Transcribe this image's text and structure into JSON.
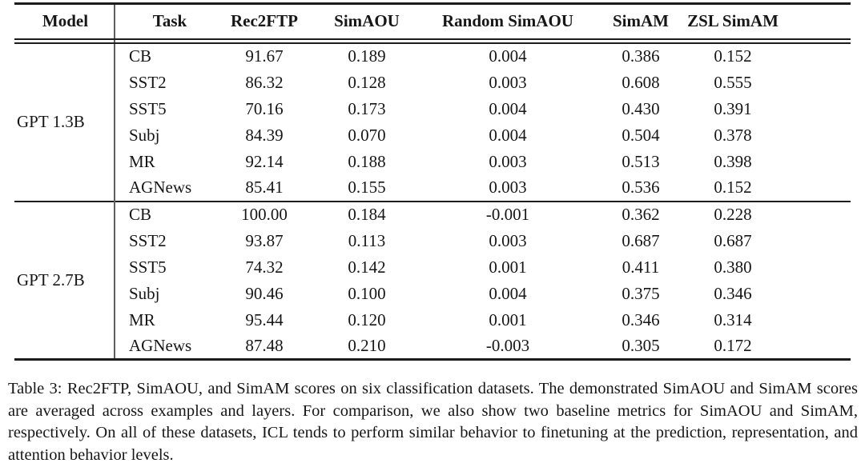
{
  "table": {
    "headers": [
      "Model",
      "Task",
      "Rec2FTP",
      "SimAOU",
      "Random SimAOU",
      "SimAM",
      "ZSL SimAM"
    ],
    "groups": [
      {
        "model": "GPT 1.3B",
        "rows": [
          [
            "CB",
            "91.67",
            "0.189",
            "0.004",
            "0.386",
            "0.152"
          ],
          [
            "SST2",
            "86.32",
            "0.128",
            "0.003",
            "0.608",
            "0.555"
          ],
          [
            "SST5",
            "70.16",
            "0.173",
            "0.004",
            "0.430",
            "0.391"
          ],
          [
            "Subj",
            "84.39",
            "0.070",
            "0.004",
            "0.504",
            "0.378"
          ],
          [
            "MR",
            "92.14",
            "0.188",
            "0.003",
            "0.513",
            "0.398"
          ],
          [
            "AGNews",
            "85.41",
            "0.155",
            "0.003",
            "0.536",
            "0.152"
          ]
        ]
      },
      {
        "model": "GPT 2.7B",
        "rows": [
          [
            "CB",
            "100.00",
            "0.184",
            "-0.001",
            "0.362",
            "0.228"
          ],
          [
            "SST2",
            "93.87",
            "0.113",
            "0.003",
            "0.687",
            "0.687"
          ],
          [
            "SST5",
            "74.32",
            "0.142",
            "0.001",
            "0.411",
            "0.380"
          ],
          [
            "Subj",
            "90.46",
            "0.100",
            "0.004",
            "0.375",
            "0.346"
          ],
          [
            "MR",
            "95.44",
            "0.120",
            "0.001",
            "0.346",
            "0.314"
          ],
          [
            "AGNews",
            "87.48",
            "0.210",
            "-0.003",
            "0.305",
            "0.172"
          ]
        ]
      }
    ]
  },
  "caption": "Table 3: Rec2FTP, SimAOU, and SimAM scores on six classification datasets. The demonstrated SimAOU and SimAM scores are averaged across examples and layers. For comparison, we also show two baseline metrics for SimAOU and SimAM, respectively. On all of these datasets, ICL tends to perform similar behavior to finetuning at the prediction, representation, and attention behavior levels.",
  "colors": {
    "text": "#161616",
    "rule": "#1c1c1c",
    "divider": "#5f5f5f",
    "background": "#ffffff"
  }
}
